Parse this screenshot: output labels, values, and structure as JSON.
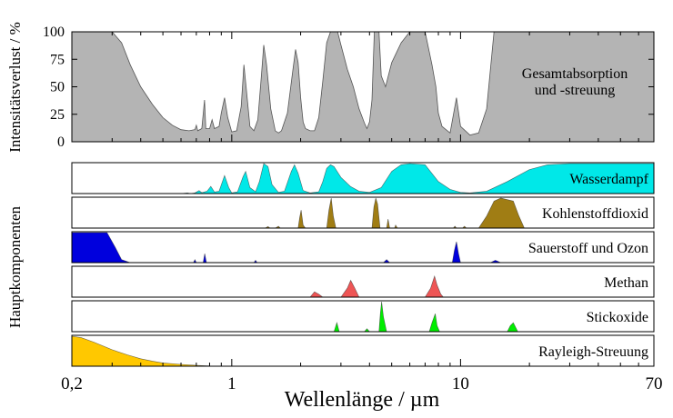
{
  "chart_data": {
    "type": "area",
    "xlabel": "Wellenlänge / µm",
    "xscale": "log",
    "xlim": [
      0.2,
      70
    ],
    "x_ticks": [
      {
        "value": 0.2,
        "label": "0,2"
      },
      {
        "value": 1,
        "label": "1"
      },
      {
        "value": 10,
        "label": "10"
      },
      {
        "value": 70,
        "label": "70"
      }
    ],
    "total": {
      "label_line1": "Gesamtabsorption",
      "label_line2": "und -streuung",
      "ylabel": "Intensitätsverlust / %",
      "ylim": [
        0,
        100
      ],
      "y_ticks": [
        "0",
        "25",
        "50",
        "75",
        "100"
      ],
      "color": "#b4b4b4",
      "points": [
        [
          0.2,
          100
        ],
        [
          0.3,
          100
        ],
        [
          0.33,
          90
        ],
        [
          0.36,
          70
        ],
        [
          0.4,
          50
        ],
        [
          0.45,
          34
        ],
        [
          0.5,
          22
        ],
        [
          0.55,
          15
        ],
        [
          0.6,
          11
        ],
        [
          0.65,
          10
        ],
        [
          0.69,
          11
        ],
        [
          0.7,
          15
        ],
        [
          0.71,
          10
        ],
        [
          0.74,
          12
        ],
        [
          0.76,
          38
        ],
        [
          0.77,
          12
        ],
        [
          0.8,
          12
        ],
        [
          0.82,
          20
        ],
        [
          0.84,
          12
        ],
        [
          0.88,
          14
        ],
        [
          0.9,
          26
        ],
        [
          0.93,
          40
        ],
        [
          0.96,
          22
        ],
        [
          1.0,
          9
        ],
        [
          1.05,
          10
        ],
        [
          1.1,
          32
        ],
        [
          1.13,
          70
        ],
        [
          1.17,
          38
        ],
        [
          1.2,
          14
        ],
        [
          1.25,
          10
        ],
        [
          1.3,
          20
        ],
        [
          1.35,
          62
        ],
        [
          1.38,
          88
        ],
        [
          1.42,
          70
        ],
        [
          1.48,
          30
        ],
        [
          1.55,
          10
        ],
        [
          1.6,
          8
        ],
        [
          1.65,
          10
        ],
        [
          1.75,
          26
        ],
        [
          1.85,
          65
        ],
        [
          1.9,
          84
        ],
        [
          1.95,
          72
        ],
        [
          2.0,
          40
        ],
        [
          2.05,
          18
        ],
        [
          2.1,
          12
        ],
        [
          2.2,
          10
        ],
        [
          2.3,
          10
        ],
        [
          2.4,
          22
        ],
        [
          2.5,
          55
        ],
        [
          2.6,
          90
        ],
        [
          2.7,
          100
        ],
        [
          2.9,
          100
        ],
        [
          3.0,
          88
        ],
        [
          3.2,
          66
        ],
        [
          3.4,
          50
        ],
        [
          3.6,
          30
        ],
        [
          3.8,
          17
        ],
        [
          3.9,
          12
        ],
        [
          4.0,
          18
        ],
        [
          4.1,
          38
        ],
        [
          4.2,
          100
        ],
        [
          4.4,
          100
        ],
        [
          4.5,
          60
        ],
        [
          4.7,
          50
        ],
        [
          5.0,
          72
        ],
        [
          5.5,
          90
        ],
        [
          6.0,
          100
        ],
        [
          7.0,
          100
        ],
        [
          7.5,
          70
        ],
        [
          7.8,
          50
        ],
        [
          8.0,
          26
        ],
        [
          8.3,
          14
        ],
        [
          9.0,
          8
        ],
        [
          9.6,
          40
        ],
        [
          10.0,
          14
        ],
        [
          11.0,
          6
        ],
        [
          12.0,
          8
        ],
        [
          13.0,
          30
        ],
        [
          14.0,
          100
        ],
        [
          70,
          100
        ]
      ]
    },
    "components": [
      {
        "name": "Wasserdampf",
        "color": "#00e8e8",
        "points": [
          [
            0.2,
            0
          ],
          [
            0.6,
            0
          ],
          [
            0.64,
            2
          ],
          [
            0.66,
            0
          ],
          [
            0.69,
            2
          ],
          [
            0.72,
            10
          ],
          [
            0.74,
            3
          ],
          [
            0.78,
            8
          ],
          [
            0.81,
            24
          ],
          [
            0.84,
            5
          ],
          [
            0.88,
            8
          ],
          [
            0.93,
            60
          ],
          [
            0.97,
            20
          ],
          [
            1.0,
            2
          ],
          [
            1.06,
            6
          ],
          [
            1.12,
            56
          ],
          [
            1.15,
            74
          ],
          [
            1.2,
            20
          ],
          [
            1.27,
            6
          ],
          [
            1.32,
            40
          ],
          [
            1.38,
            100
          ],
          [
            1.44,
            90
          ],
          [
            1.5,
            30
          ],
          [
            1.6,
            4
          ],
          [
            1.7,
            8
          ],
          [
            1.82,
            74
          ],
          [
            1.88,
            96
          ],
          [
            1.95,
            68
          ],
          [
            2.05,
            10
          ],
          [
            2.2,
            2
          ],
          [
            2.4,
            6
          ],
          [
            2.5,
            40
          ],
          [
            2.6,
            84
          ],
          [
            2.7,
            96
          ],
          [
            2.8,
            90
          ],
          [
            3.0,
            54
          ],
          [
            3.3,
            24
          ],
          [
            3.6,
            8
          ],
          [
            4.0,
            4
          ],
          [
            4.5,
            20
          ],
          [
            5.0,
            74
          ],
          [
            5.5,
            96
          ],
          [
            6.0,
            100
          ],
          [
            7.0,
            96
          ],
          [
            8.0,
            40
          ],
          [
            9.0,
            14
          ],
          [
            10.0,
            4
          ],
          [
            11.0,
            2
          ],
          [
            13.0,
            8
          ],
          [
            16.0,
            40
          ],
          [
            20.0,
            80
          ],
          [
            24.0,
            96
          ],
          [
            30.0,
            100
          ],
          [
            70,
            100
          ]
        ]
      },
      {
        "name": "Kohlenstoffdioxid",
        "color": "#a07d14",
        "points": [
          [
            0.2,
            0
          ],
          [
            1.4,
            0
          ],
          [
            1.44,
            5
          ],
          [
            1.47,
            0
          ],
          [
            1.55,
            0
          ],
          [
            1.6,
            6
          ],
          [
            1.63,
            0
          ],
          [
            1.95,
            0
          ],
          [
            1.98,
            35
          ],
          [
            2.01,
            60
          ],
          [
            2.05,
            10
          ],
          [
            2.1,
            0
          ],
          [
            2.6,
            0
          ],
          [
            2.66,
            60
          ],
          [
            2.72,
            100
          ],
          [
            2.78,
            40
          ],
          [
            2.85,
            0
          ],
          [
            4.1,
            0
          ],
          [
            4.18,
            70
          ],
          [
            4.26,
            100
          ],
          [
            4.34,
            80
          ],
          [
            4.45,
            0
          ],
          [
            4.75,
            0
          ],
          [
            4.82,
            30
          ],
          [
            4.9,
            0
          ],
          [
            5.15,
            0
          ],
          [
            5.2,
            10
          ],
          [
            5.3,
            0
          ],
          [
            9.3,
            0
          ],
          [
            9.45,
            6
          ],
          [
            9.6,
            0
          ],
          [
            10.2,
            0
          ],
          [
            10.4,
            6
          ],
          [
            10.6,
            0
          ],
          [
            12.0,
            0
          ],
          [
            13.0,
            40
          ],
          [
            14.0,
            90
          ],
          [
            15.0,
            100
          ],
          [
            17.0,
            90
          ],
          [
            18.0,
            40
          ],
          [
            19.0,
            0
          ],
          [
            70,
            0
          ]
        ]
      },
      {
        "name": "Sauerstoff und Ozon",
        "color": "#0000dd",
        "points": [
          [
            0.2,
            100
          ],
          [
            0.285,
            100
          ],
          [
            0.31,
            50
          ],
          [
            0.33,
            10
          ],
          [
            0.36,
            0
          ],
          [
            0.68,
            0
          ],
          [
            0.69,
            10
          ],
          [
            0.7,
            0
          ],
          [
            0.75,
            0
          ],
          [
            0.762,
            30
          ],
          [
            0.775,
            0
          ],
          [
            1.25,
            0
          ],
          [
            1.27,
            8
          ],
          [
            1.29,
            0
          ],
          [
            4.6,
            0
          ],
          [
            4.75,
            10
          ],
          [
            4.9,
            0
          ],
          [
            9.2,
            0
          ],
          [
            9.4,
            40
          ],
          [
            9.6,
            70
          ],
          [
            9.8,
            30
          ],
          [
            10.0,
            0
          ],
          [
            13.5,
            0
          ],
          [
            14.2,
            8
          ],
          [
            15.0,
            0
          ],
          [
            70,
            0
          ]
        ]
      },
      {
        "name": "Methan",
        "color": "#ee5555",
        "points": [
          [
            0.2,
            0
          ],
          [
            2.2,
            0
          ],
          [
            2.3,
            18
          ],
          [
            2.4,
            10
          ],
          [
            2.5,
            0
          ],
          [
            3.0,
            0
          ],
          [
            3.2,
            30
          ],
          [
            3.31,
            56
          ],
          [
            3.45,
            30
          ],
          [
            3.6,
            0
          ],
          [
            7.0,
            0
          ],
          [
            7.4,
            30
          ],
          [
            7.7,
            70
          ],
          [
            7.9,
            40
          ],
          [
            8.2,
            10
          ],
          [
            8.4,
            0
          ],
          [
            70,
            0
          ]
        ]
      },
      {
        "name": "Stickoxide",
        "color": "#00ee00",
        "points": [
          [
            0.2,
            0
          ],
          [
            2.8,
            0
          ],
          [
            2.88,
            30
          ],
          [
            2.95,
            0
          ],
          [
            3.8,
            0
          ],
          [
            3.9,
            10
          ],
          [
            4.0,
            0
          ],
          [
            4.4,
            0
          ],
          [
            4.46,
            60
          ],
          [
            4.52,
            100
          ],
          [
            4.6,
            50
          ],
          [
            4.75,
            0
          ],
          [
            7.3,
            0
          ],
          [
            7.5,
            30
          ],
          [
            7.75,
            60
          ],
          [
            7.9,
            20
          ],
          [
            8.1,
            0
          ],
          [
            16.0,
            0
          ],
          [
            16.5,
            20
          ],
          [
            17.0,
            30
          ],
          [
            17.8,
            0
          ],
          [
            70,
            0
          ]
        ]
      },
      {
        "name": "Rayleigh-Streuung",
        "color": "#ffc800",
        "points": [
          [
            0.2,
            100
          ],
          [
            0.22,
            95
          ],
          [
            0.25,
            80
          ],
          [
            0.3,
            55
          ],
          [
            0.35,
            38
          ],
          [
            0.4,
            25
          ],
          [
            0.45,
            17
          ],
          [
            0.5,
            11
          ],
          [
            0.6,
            6
          ],
          [
            0.7,
            3
          ],
          [
            0.8,
            1
          ],
          [
            1.0,
            0
          ],
          [
            70,
            0
          ]
        ]
      }
    ],
    "components_ylabel": "Hauptkomponenten"
  }
}
